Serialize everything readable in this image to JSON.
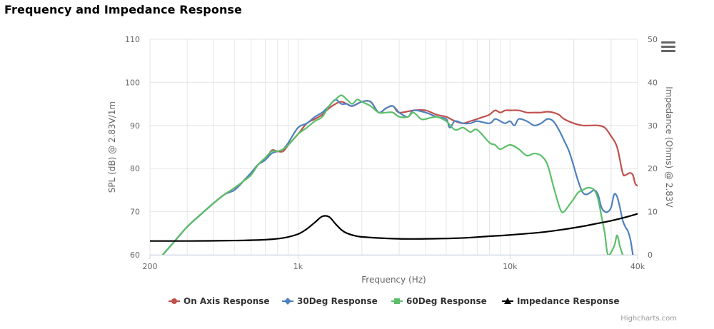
{
  "page": {
    "title": "Frequency and Impedance Response"
  },
  "menu": {
    "icon": "hamburger-menu-icon"
  },
  "credits": "Highcharts.com",
  "colors": {
    "on_axis": "#c0504d",
    "deg30": "#4f81bd",
    "deg60": "#5bbf6a",
    "impedance": "#000000"
  },
  "chart_data": {
    "type": "line",
    "x_scale": "log",
    "xlabel": "Frequency (Hz)",
    "ylabel_left": "SPL (dB) @ 2.83V/1m",
    "ylabel_right": "Impedance (Ohms) @ 2.83V",
    "xlim": [
      200,
      40000
    ],
    "ylim_left": [
      60,
      110
    ],
    "ylim_right": [
      0,
      50
    ],
    "x_ticks": [
      200,
      1000,
      10000,
      40000
    ],
    "x_tick_labels": [
      "200",
      "1k",
      "10k",
      "40k"
    ],
    "y_left_ticks": [
      "60",
      "70",
      "80",
      "90",
      "100",
      "110"
    ],
    "y_right_ticks": [
      "0",
      "10",
      "20",
      "30",
      "40",
      "50"
    ],
    "grid": true,
    "legend_position": "bottom",
    "series": [
      {
        "name": "On Axis Response",
        "axis": "left",
        "color": "#c0504d",
        "points": [
          [
            230,
            60
          ],
          [
            260,
            63
          ],
          [
            300,
            66.5
          ],
          [
            350,
            69.5
          ],
          [
            400,
            72
          ],
          [
            450,
            74
          ],
          [
            500,
            75
          ],
          [
            550,
            77
          ],
          [
            600,
            79
          ],
          [
            650,
            81
          ],
          [
            700,
            82
          ],
          [
            750,
            84.2
          ],
          [
            800,
            84
          ],
          [
            850,
            84
          ],
          [
            900,
            85.5
          ],
          [
            1000,
            88
          ],
          [
            1100,
            90.5
          ],
          [
            1200,
            91.5
          ],
          [
            1300,
            92.5
          ],
          [
            1400,
            94
          ],
          [
            1500,
            95
          ],
          [
            1600,
            95.5
          ],
          [
            1700,
            95
          ],
          [
            1800,
            94.5
          ],
          [
            2000,
            95.5
          ],
          [
            2200,
            95.5
          ],
          [
            2400,
            93
          ],
          [
            2600,
            94
          ],
          [
            2800,
            94.5
          ],
          [
            3000,
            93
          ],
          [
            3500,
            93.5
          ],
          [
            4000,
            93.5
          ],
          [
            4500,
            92.5
          ],
          [
            5000,
            92
          ],
          [
            5500,
            91
          ],
          [
            6000,
            90.5
          ],
          [
            6500,
            91
          ],
          [
            7000,
            91.5
          ],
          [
            7500,
            92
          ],
          [
            8000,
            92.5
          ],
          [
            8500,
            93.5
          ],
          [
            9000,
            93
          ],
          [
            9500,
            93.5
          ],
          [
            10000,
            93.5
          ],
          [
            11000,
            93.5
          ],
          [
            12000,
            93
          ],
          [
            13000,
            93
          ],
          [
            14000,
            93
          ],
          [
            15000,
            93.2
          ],
          [
            16000,
            93
          ],
          [
            17000,
            92.5
          ],
          [
            18000,
            91.5
          ],
          [
            20000,
            90.5
          ],
          [
            22000,
            90
          ],
          [
            24000,
            90
          ],
          [
            26000,
            90
          ],
          [
            28000,
            89.5
          ],
          [
            30000,
            87.5
          ],
          [
            32000,
            85
          ],
          [
            34000,
            79
          ],
          [
            35000,
            78.5
          ],
          [
            36000,
            78.8
          ],
          [
            37000,
            79
          ],
          [
            38000,
            78.5
          ],
          [
            39000,
            76.5
          ],
          [
            40000,
            76
          ]
        ]
      },
      {
        "name": "30Deg Response",
        "axis": "left",
        "color": "#4f81bd",
        "points": [
          [
            230,
            60
          ],
          [
            260,
            63
          ],
          [
            300,
            66.5
          ],
          [
            350,
            69.5
          ],
          [
            400,
            72
          ],
          [
            450,
            74
          ],
          [
            500,
            75
          ],
          [
            550,
            77
          ],
          [
            600,
            79
          ],
          [
            650,
            81
          ],
          [
            700,
            82
          ],
          [
            750,
            83.5
          ],
          [
            800,
            84
          ],
          [
            850,
            84.5
          ],
          [
            900,
            86
          ],
          [
            1000,
            89.5
          ],
          [
            1100,
            90.5
          ],
          [
            1200,
            92
          ],
          [
            1300,
            93
          ],
          [
            1400,
            94.5
          ],
          [
            1500,
            96
          ],
          [
            1600,
            95
          ],
          [
            1700,
            95
          ],
          [
            1800,
            94.5
          ],
          [
            2000,
            95.5
          ],
          [
            2200,
            95.5
          ],
          [
            2400,
            93
          ],
          [
            2600,
            94
          ],
          [
            2800,
            94.5
          ],
          [
            3000,
            93
          ],
          [
            3300,
            92
          ],
          [
            3500,
            93.5
          ],
          [
            4000,
            93
          ],
          [
            4500,
            92
          ],
          [
            5000,
            91.5
          ],
          [
            5200,
            89.5
          ],
          [
            5500,
            91
          ],
          [
            6000,
            90.5
          ],
          [
            6500,
            90.5
          ],
          [
            7000,
            91
          ],
          [
            8000,
            90.5
          ],
          [
            8500,
            91.5
          ],
          [
            9000,
            91
          ],
          [
            9500,
            90.5
          ],
          [
            10000,
            91
          ],
          [
            10500,
            90
          ],
          [
            11000,
            91.5
          ],
          [
            12000,
            91
          ],
          [
            13000,
            90
          ],
          [
            14000,
            90.5
          ],
          [
            15000,
            91.5
          ],
          [
            16000,
            91
          ],
          [
            17000,
            89
          ],
          [
            18000,
            86.5
          ],
          [
            19000,
            84
          ],
          [
            20000,
            80.5
          ],
          [
            21000,
            77
          ],
          [
            22000,
            74.5
          ],
          [
            23000,
            74
          ],
          [
            24000,
            74.5
          ],
          [
            25000,
            75
          ],
          [
            26000,
            74
          ],
          [
            27000,
            71
          ],
          [
            28000,
            70
          ],
          [
            29000,
            70
          ],
          [
            30000,
            71
          ],
          [
            31000,
            74
          ],
          [
            32000,
            73.5
          ],
          [
            33000,
            71
          ],
          [
            34000,
            68
          ],
          [
            35000,
            66.5
          ],
          [
            36000,
            65.5
          ],
          [
            37000,
            63.5
          ],
          [
            38000,
            60
          ]
        ]
      },
      {
        "name": "60Deg Response",
        "axis": "left",
        "color": "#5bbf6a",
        "points": [
          [
            230,
            60
          ],
          [
            260,
            63
          ],
          [
            300,
            66.5
          ],
          [
            350,
            69.5
          ],
          [
            400,
            72
          ],
          [
            450,
            74
          ],
          [
            500,
            75.5
          ],
          [
            550,
            77
          ],
          [
            600,
            78.5
          ],
          [
            650,
            81
          ],
          [
            700,
            82.5
          ],
          [
            750,
            84
          ],
          [
            800,
            84
          ],
          [
            850,
            84.5
          ],
          [
            900,
            85.5
          ],
          [
            1000,
            88
          ],
          [
            1100,
            89.5
          ],
          [
            1200,
            91
          ],
          [
            1300,
            92
          ],
          [
            1400,
            94.5
          ],
          [
            1500,
            96
          ],
          [
            1600,
            97
          ],
          [
            1700,
            96
          ],
          [
            1800,
            95
          ],
          [
            1900,
            96
          ],
          [
            2000,
            95.5
          ],
          [
            2200,
            94.5
          ],
          [
            2400,
            93
          ],
          [
            2600,
            93
          ],
          [
            2800,
            93
          ],
          [
            3000,
            92
          ],
          [
            3300,
            92
          ],
          [
            3500,
            93
          ],
          [
            3800,
            91.5
          ],
          [
            4000,
            91.5
          ],
          [
            4500,
            92
          ],
          [
            5000,
            91
          ],
          [
            5500,
            89
          ],
          [
            6000,
            89.5
          ],
          [
            6500,
            88.5
          ],
          [
            7000,
            89
          ],
          [
            8000,
            86
          ],
          [
            8500,
            85.5
          ],
          [
            9000,
            84.5
          ],
          [
            10000,
            85.5
          ],
          [
            11000,
            84.5
          ],
          [
            12000,
            83
          ],
          [
            13000,
            83.5
          ],
          [
            14000,
            83
          ],
          [
            15000,
            81
          ],
          [
            16000,
            76
          ],
          [
            17000,
            71.5
          ],
          [
            17500,
            70
          ],
          [
            18000,
            70
          ],
          [
            19000,
            71.5
          ],
          [
            20000,
            73
          ],
          [
            21000,
            74.5
          ],
          [
            22000,
            75
          ],
          [
            23000,
            75.5
          ],
          [
            24000,
            75.5
          ],
          [
            25000,
            75
          ],
          [
            26000,
            73
          ],
          [
            27000,
            69
          ],
          [
            28000,
            65
          ],
          [
            29000,
            60
          ],
          [
            31000,
            62
          ],
          [
            32000,
            64.5
          ],
          [
            33000,
            62
          ],
          [
            34000,
            60
          ]
        ]
      },
      {
        "name": "Impedance Response",
        "axis": "right",
        "color": "#000000",
        "points": [
          [
            200,
            3.2
          ],
          [
            300,
            3.2
          ],
          [
            500,
            3.3
          ],
          [
            700,
            3.5
          ],
          [
            850,
            3.9
          ],
          [
            1000,
            4.8
          ],
          [
            1100,
            6
          ],
          [
            1200,
            7.5
          ],
          [
            1300,
            8.9
          ],
          [
            1400,
            8.8
          ],
          [
            1500,
            7.2
          ],
          [
            1600,
            5.8
          ],
          [
            1700,
            5
          ],
          [
            1900,
            4.3
          ],
          [
            2200,
            4
          ],
          [
            3000,
            3.7
          ],
          [
            4000,
            3.7
          ],
          [
            6000,
            3.9
          ],
          [
            8000,
            4.3
          ],
          [
            10000,
            4.6
          ],
          [
            14000,
            5.2
          ],
          [
            18000,
            5.9
          ],
          [
            22000,
            6.6
          ],
          [
            26000,
            7.3
          ],
          [
            30000,
            7.9
          ],
          [
            35000,
            8.7
          ],
          [
            40000,
            9.5
          ]
        ]
      }
    ]
  }
}
